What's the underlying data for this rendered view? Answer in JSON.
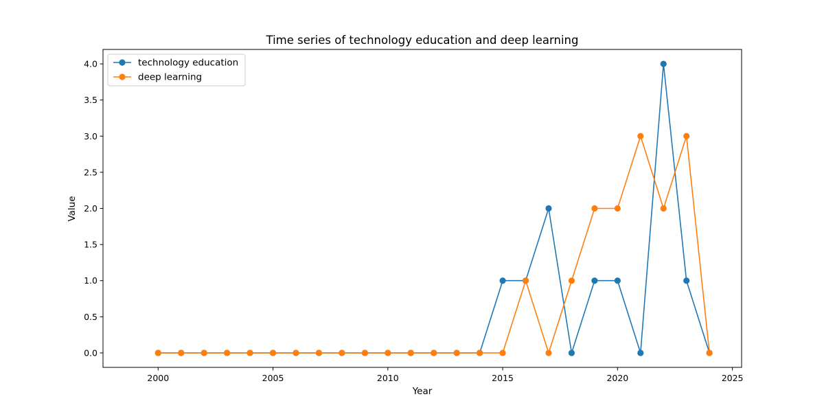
{
  "chart_data": {
    "type": "line",
    "title": "Time series of technology education and deep learning",
    "xlabel": "Year",
    "ylabel": "Value",
    "x": [
      2000,
      2001,
      2002,
      2003,
      2004,
      2005,
      2006,
      2007,
      2008,
      2009,
      2010,
      2011,
      2012,
      2013,
      2014,
      2015,
      2016,
      2017,
      2018,
      2019,
      2020,
      2021,
      2022,
      2023,
      2024
    ],
    "xlim": [
      1997.6,
      2025.4
    ],
    "ylim": [
      -0.2,
      4.2
    ],
    "xticks": [
      2000,
      2005,
      2010,
      2015,
      2020,
      2025
    ],
    "xtick_labels": [
      "2000",
      "2005",
      "2010",
      "2015",
      "2020",
      "2025"
    ],
    "yticks": [
      0.0,
      0.5,
      1.0,
      1.5,
      2.0,
      2.5,
      3.0,
      3.5,
      4.0
    ],
    "ytick_labels": [
      "0.0",
      "0.5",
      "1.0",
      "1.5",
      "2.0",
      "2.5",
      "3.0",
      "3.5",
      "4.0"
    ],
    "grid": false,
    "legend_position": "upper-left",
    "series": [
      {
        "name": "technology education",
        "color": "#1f77b4",
        "marker": "circle",
        "values": [
          0,
          0,
          0,
          0,
          0,
          0,
          0,
          0,
          0,
          0,
          0,
          0,
          0,
          0,
          0,
          1,
          1,
          2,
          0,
          1,
          1,
          0,
          4,
          1,
          0
        ]
      },
      {
        "name": "deep learning",
        "color": "#ff7f0e",
        "marker": "circle",
        "values": [
          0,
          0,
          0,
          0,
          0,
          0,
          0,
          0,
          0,
          0,
          0,
          0,
          0,
          0,
          0,
          0,
          1,
          0,
          1,
          2,
          2,
          3,
          2,
          3,
          0
        ]
      }
    ]
  }
}
